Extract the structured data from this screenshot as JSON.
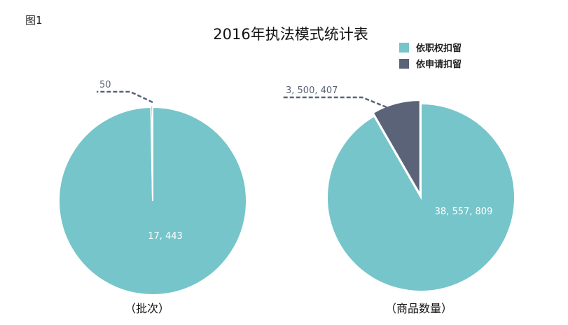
{
  "figure_label": "图1",
  "colors": {
    "series1": "#76c5ca",
    "series2": "#5b6379",
    "callout": "#5b6379",
    "inner_label": "#ffffff"
  },
  "chart_data": {
    "type": "pie",
    "title": "2016年执法模式统计表",
    "legend": {
      "position": "top-right",
      "entries": [
        "依职权扣留",
        "依申请扣留"
      ]
    },
    "pies": [
      {
        "caption": "（批次）",
        "slices": [
          {
            "name": "依职权扣留",
            "value": 17443,
            "label": "17, 443"
          },
          {
            "name": "依申请扣留",
            "value": 50,
            "label": "50"
          }
        ]
      },
      {
        "caption": "（商品数量）",
        "slices": [
          {
            "name": "依职权扣留",
            "value": 38557809,
            "label": "38, 557, 809"
          },
          {
            "name": "依申请扣留",
            "value": 3500407,
            "label": "3, 500, 407"
          }
        ]
      }
    ]
  }
}
